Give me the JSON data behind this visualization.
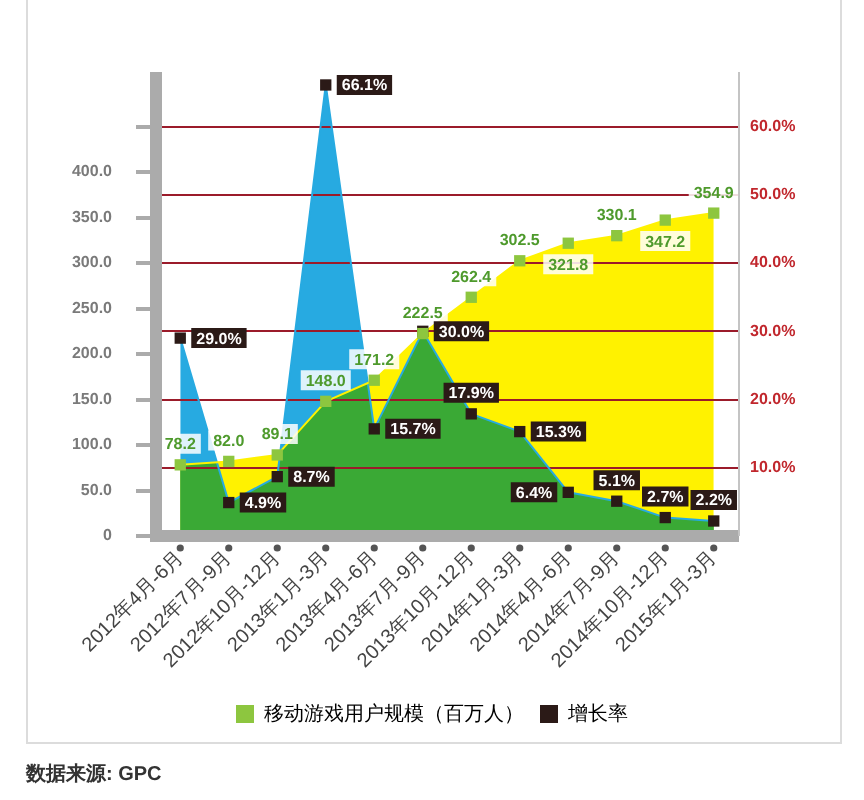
{
  "chart_data": {
    "type": "area",
    "categories": [
      "2012年4月-6月",
      "2012年7月-9月",
      "2012年10月-12月",
      "2013年1月-3月",
      "2013年4月-6月",
      "2013年7月-9月",
      "2013年10月-12月",
      "2014年1月-3月",
      "2014年4月-6月",
      "2014年7月-9月",
      "2014年10月-12月",
      "2015年1月-3月"
    ],
    "series": [
      {
        "color": "#fff200",
        "marker": "none",
        "values": [
          78.2,
          82.0,
          89.1,
          148.0,
          171.2,
          222.5,
          262.4,
          302.5,
          321.8,
          330.1,
          347.2,
          354.9
        ]
      },
      {
        "color": "#27aae1",
        "axis": "y2",
        "marker": "none",
        "values": [
          29.0,
          4.9,
          8.7,
          66.1,
          15.7,
          30.0,
          17.9,
          15.3,
          6.4,
          5.1,
          2.7,
          2.2
        ]
      },
      {
        "type": "scatter",
        "name": "移动游戏用户规模（百万人）",
        "color": "#8dc63f",
        "values": [
          78.2,
          82.0,
          89.1,
          148.0,
          171.2,
          222.5,
          262.4,
          302.5,
          321.8,
          330.1,
          347.2,
          354.9
        ],
        "value_labels": [
          "78.2",
          "82.0",
          "89.1",
          "148.0",
          "171.2",
          "222.5",
          "262.4",
          "302.5",
          "321.8",
          "330.1",
          "347.2",
          "354.9"
        ]
      },
      {
        "type": "scatter",
        "name": "增长率",
        "color": "#2b1a17",
        "axis": "y2",
        "values": [
          29.0,
          4.9,
          8.7,
          66.1,
          15.7,
          30.0,
          17.9,
          15.3,
          6.4,
          5.1,
          2.7,
          2.2
        ],
        "value_labels": [
          "29.0%",
          "4.9%",
          "8.7%",
          "66.1%",
          "15.7%",
          "30.0%",
          "17.9%",
          "15.3%",
          "6.4%",
          "5.1%",
          "2.7%",
          "2.2%"
        ]
      }
    ],
    "ylim": [
      0,
      510
    ],
    "yticks": [
      0,
      {
        "value": 50,
        "label": "50.0"
      },
      {
        "value": 100,
        "label": "100.0"
      },
      {
        "value": 150,
        "label": "150.0"
      },
      {
        "value": 200,
        "label": "200.0"
      },
      {
        "value": 250,
        "label": "250.0"
      },
      {
        "value": 300,
        "label": "300.0"
      },
      {
        "value": 350,
        "label": "350.0"
      },
      {
        "value": 400,
        "label": "400.0"
      },
      {
        "value": 450,
        "label": null
      }
    ],
    "y2lim": [
      0,
      68
    ],
    "y2ticks": [
      {
        "value": 10,
        "label": "10.0%"
      },
      {
        "value": 20,
        "label": "20.0%"
      },
      {
        "value": 30,
        "label": "30.0%"
      },
      {
        "value": 40,
        "label": "40.0%"
      },
      {
        "value": 50,
        "label": "50.0%"
      },
      {
        "value": 60,
        "label": "60.0%"
      }
    ],
    "grid": "y2",
    "legend": "bottom",
    "marker": "square",
    "annotations": [
      "数据来源: GPC"
    ]
  }
}
